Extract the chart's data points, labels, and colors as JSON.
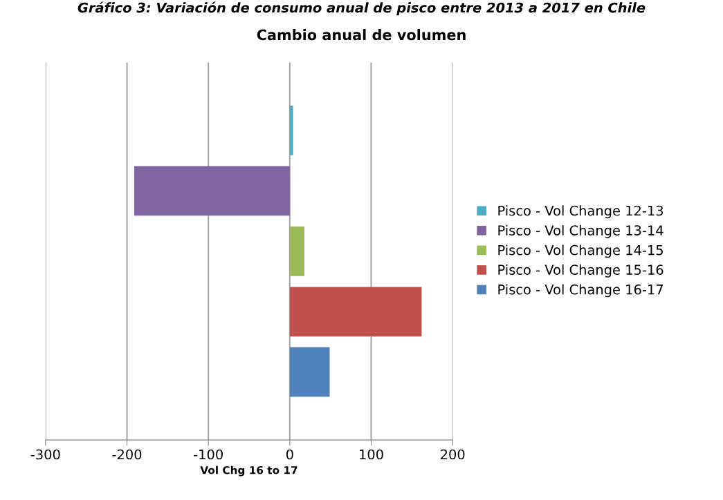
{
  "chart_data": {
    "type": "bar",
    "orientation": "horizontal",
    "title": "Cambio anual de volumen",
    "xlabel": "Vol Chg 16 to 17",
    "annotations": [
      "Gráfico 3: Variación de consumo anual de pisco entre 2013 a 2017 en Chile"
    ],
    "categories": [
      null
    ],
    "series": [
      {
        "name": "Pisco - Vol Change 12-13",
        "color": "#4bacc6",
        "values": [
          4
        ]
      },
      {
        "name": "Pisco - Vol Change 13-14",
        "color": "#8064a2",
        "values": [
          -191
        ]
      },
      {
        "name": "Pisco - Vol Change 14-15",
        "color": "#9bbb59",
        "values": [
          18
        ]
      },
      {
        "name": "Pisco - Vol Change 15-16",
        "color": "#c0504d",
        "values": [
          162
        ]
      },
      {
        "name": "Pisco - Vol Change 16-17",
        "color": "#4f81bd",
        "values": [
          49
        ]
      }
    ],
    "xlim": [
      -300,
      200
    ],
    "xticks": [
      -300,
      -200,
      -100,
      0,
      100,
      200
    ],
    "grid": "x",
    "legend": "right",
    "tick_labels": "x"
  }
}
